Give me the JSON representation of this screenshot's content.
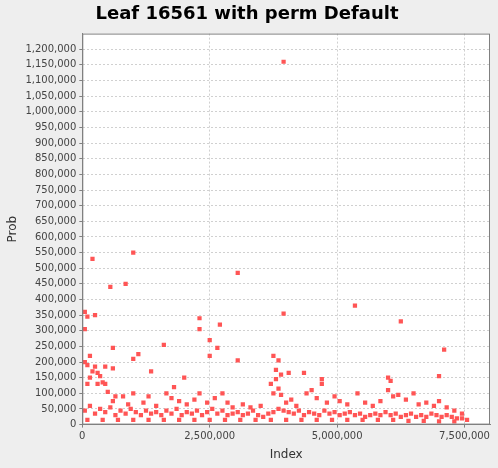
{
  "chart_data": {
    "type": "scatter",
    "title": "Leaf 16561 with perm Default",
    "x_label": "Index",
    "y_label": "Prob",
    "color": "#ff5555",
    "marker": "square",
    "grid": true,
    "xlim": [
      0,
      8000000
    ],
    "xticks": [
      0,
      {
        "value": 2500000,
        "label": "2,500,000"
      },
      {
        "value": 5000000,
        "label": "5,000,000"
      },
      {
        "value": 7500000,
        "label": "7,500,000"
      }
    ],
    "ylim": [
      0,
      1250000
    ],
    "yticks": [
      0,
      {
        "value": 50000,
        "label": "50,000"
      },
      {
        "value": 100000,
        "label": "100,000"
      },
      {
        "value": 150000,
        "label": "150,000"
      },
      {
        "value": 200000,
        "label": "200,000"
      },
      {
        "value": 250000,
        "label": "250,000"
      },
      {
        "value": 300000,
        "label": "300,000"
      },
      {
        "value": 350000,
        "label": "350,000"
      },
      {
        "value": 400000,
        "label": "400,000"
      },
      {
        "value": 450000,
        "label": "450,000"
      },
      {
        "value": 500000,
        "label": "500,000"
      },
      {
        "value": 550000,
        "label": "550,000"
      },
      {
        "value": 600000,
        "label": "600,000"
      },
      {
        "value": 650000,
        "label": "650,000"
      },
      {
        "value": 700000,
        "label": "700,000"
      },
      {
        "value": 750000,
        "label": "750,000"
      },
      {
        "value": 800000,
        "label": "800,000"
      },
      {
        "value": 850000,
        "label": "850,000"
      },
      {
        "value": 900000,
        "label": "900,000"
      },
      {
        "value": 950000,
        "label": "950,000"
      },
      {
        "value": 1000000,
        "label": "1,000,000"
      },
      {
        "value": 1050000,
        "label": "1,050,000"
      },
      {
        "value": 1100000,
        "label": "1,100,000"
      },
      {
        "value": 1150000,
        "label": "1,150,000"
      },
      {
        "value": 1200000,
        "label": "1,200,000"
      }
    ],
    "x": [
      3950000,
      1000000,
      200000,
      3050000,
      850000,
      550000,
      5350000,
      50000,
      100000,
      250000,
      50000,
      3950000,
      2300000,
      2300000,
      2700000,
      6250000,
      2500000,
      2650000,
      2500000,
      1600000,
      7100000,
      600000,
      1100000,
      1000000,
      3050000,
      3750000,
      3850000,
      3800000,
      3900000,
      4050000,
      4350000,
      1350000,
      600000,
      450000,
      6000000,
      6050000,
      7000000,
      2000000,
      1800000,
      4700000,
      4700000,
      4500000,
      100000,
      150000,
      200000,
      300000,
      350000,
      400000,
      50000,
      100000,
      150000,
      250000,
      300000,
      450000,
      500000,
      600000,
      650000,
      800000,
      900000,
      1000000,
      1200000,
      1300000,
      1450000,
      1650000,
      1750000,
      1900000,
      2050000,
      2200000,
      2300000,
      2450000,
      2600000,
      2750000,
      2850000,
      2950000,
      3150000,
      3300000,
      3500000,
      3700000,
      3750000,
      3800000,
      3850000,
      3900000,
      4000000,
      4100000,
      4200000,
      4400000,
      4600000,
      4800000,
      4950000,
      5050000,
      5200000,
      5400000,
      5550000,
      5700000,
      5850000,
      6000000,
      6100000,
      6200000,
      6350000,
      6500000,
      6600000,
      6750000,
      6900000,
      7000000,
      7150000,
      7300000,
      7450000,
      50000,
      150000,
      250000,
      350000,
      450000,
      550000,
      650000,
      750000,
      850000,
      950000,
      1050000,
      1150000,
      1250000,
      1350000,
      1450000,
      1550000,
      1650000,
      1750000,
      1850000,
      1950000,
      2050000,
      2150000,
      2250000,
      2350000,
      2450000,
      2550000,
      2650000,
      2750000,
      2850000,
      2950000,
      3050000,
      3150000,
      3250000,
      3350000,
      3450000,
      3550000,
      3650000,
      3750000,
      3850000,
      3950000,
      4050000,
      4150000,
      4250000,
      4350000,
      4450000,
      4550000,
      4650000,
      4750000,
      4850000,
      4950000,
      5050000,
      5150000,
      5250000,
      5350000,
      5450000,
      5550000,
      5650000,
      5750000,
      5850000,
      5950000,
      6050000,
      6150000,
      6250000,
      6350000,
      6450000,
      6550000,
      6650000,
      6750000,
      6850000,
      6950000,
      7050000,
      7150000,
      7250000,
      7350000,
      7450000,
      7550000,
      100000,
      400000,
      700000,
      1000000,
      1300000,
      1600000,
      1900000,
      2200000,
      2500000,
      2800000,
      3100000,
      3400000,
      3700000,
      4000000,
      4300000,
      4600000,
      4900000,
      5200000,
      5500000,
      5800000,
      6100000,
      6400000,
      6700000,
      7000000,
      7300000
    ],
    "values": [
      1160000,
      550000,
      530000,
      485000,
      450000,
      440000,
      380000,
      360000,
      345000,
      350000,
      305000,
      355000,
      340000,
      305000,
      320000,
      330000,
      270000,
      245000,
      220000,
      255000,
      240000,
      245000,
      225000,
      210000,
      205000,
      220000,
      205000,
      175000,
      160000,
      165000,
      165000,
      170000,
      180000,
      185000,
      150000,
      140000,
      155000,
      150000,
      120000,
      145000,
      130000,
      110000,
      130000,
      150000,
      170000,
      130000,
      155000,
      135000,
      200000,
      190000,
      220000,
      185000,
      165000,
      130000,
      105000,
      75000,
      90000,
      90000,
      65000,
      100000,
      70000,
      90000,
      60000,
      100000,
      85000,
      75000,
      65000,
      80000,
      100000,
      70000,
      85000,
      100000,
      70000,
      55000,
      65000,
      55000,
      60000,
      130000,
      100000,
      145000,
      115000,
      95000,
      70000,
      80000,
      60000,
      100000,
      85000,
      70000,
      90000,
      75000,
      65000,
      100000,
      70000,
      60000,
      75000,
      110000,
      90000,
      95000,
      80000,
      100000,
      65000,
      70000,
      60000,
      75000,
      55000,
      45000,
      35000,
      45000,
      60000,
      35000,
      50000,
      40000,
      55000,
      30000,
      45000,
      35000,
      50000,
      40000,
      30000,
      45000,
      35000,
      40000,
      30000,
      45000,
      35000,
      50000,
      30000,
      40000,
      35000,
      45000,
      30000,
      40000,
      50000,
      35000,
      45000,
      30000,
      35000,
      40000,
      30000,
      35000,
      45000,
      30000,
      25000,
      35000,
      40000,
      50000,
      45000,
      40000,
      35000,
      45000,
      30000,
      40000,
      35000,
      30000,
      45000,
      35000,
      40000,
      30000,
      35000,
      40000,
      30000,
      35000,
      25000,
      30000,
      35000,
      30000,
      40000,
      30000,
      35000,
      25000,
      30000,
      35000,
      25000,
      30000,
      25000,
      35000,
      30000,
      25000,
      30000,
      25000,
      20000,
      20000,
      15000,
      15000,
      15000,
      15000,
      15000,
      15000,
      15000,
      15000,
      15000,
      15000,
      15000,
      15000,
      15000,
      15000,
      15000,
      15000,
      15000,
      15000,
      15000,
      15000,
      15000,
      15000,
      12000,
      12000,
      10000,
      10000
    ]
  }
}
